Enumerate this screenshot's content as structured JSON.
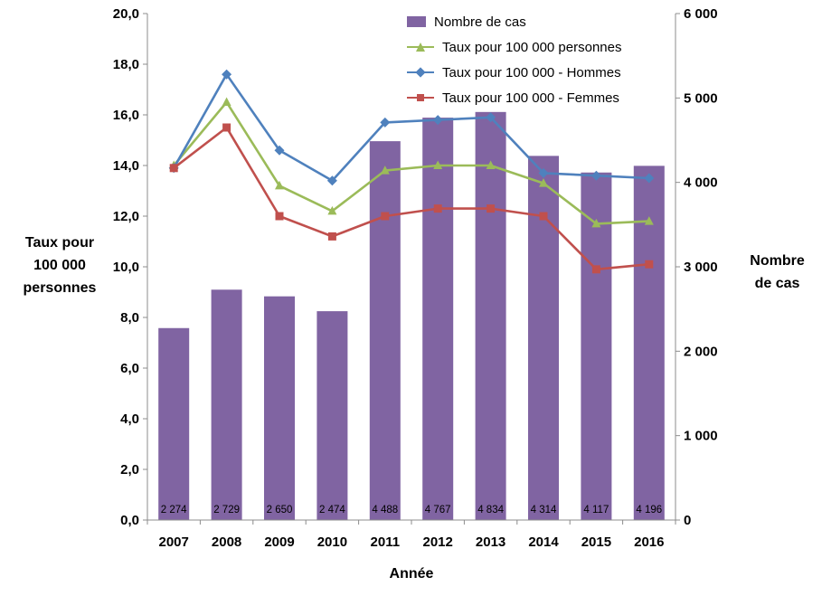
{
  "chart_data": {
    "type": "combo-bar-line",
    "title": "",
    "xlabel": "Année",
    "ylabel_left": "Taux pour 100 000 personnes",
    "ylabel_left_lines": [
      "Taux pour",
      "100 000",
      "personnes"
    ],
    "ylabel_right": "Nombre de cas",
    "ylabel_right_lines": [
      "Nombre",
      "de cas"
    ],
    "legend_position": "top-center",
    "grid": false,
    "categories": [
      "2007",
      "2008",
      "2009",
      "2010",
      "2011",
      "2012",
      "2013",
      "2014",
      "2015",
      "2016"
    ],
    "left_axis": {
      "min": 0,
      "max": 20,
      "step": 2,
      "tick_labels": [
        "0,0",
        "2,0",
        "4,0",
        "6,0",
        "8,0",
        "10,0",
        "12,0",
        "14,0",
        "16,0",
        "18,0",
        "20,0"
      ]
    },
    "right_axis": {
      "min": 0,
      "max": 6000,
      "step": 1000,
      "tick_labels": [
        "0",
        "1 000",
        "2 000",
        "3 000",
        "4 000",
        "5 000",
        "6 000"
      ]
    },
    "bar_series": {
      "name": "Nombre de cas",
      "axis": "right",
      "color": "#8064A2",
      "values": [
        2274,
        2729,
        2650,
        2474,
        4488,
        4767,
        4834,
        4314,
        4117,
        4196
      ],
      "labels": [
        "2 274",
        "2 729",
        "2 650",
        "2 474",
        "4 488",
        "4 767",
        "4 834",
        "4 314",
        "4 117",
        "4 196"
      ]
    },
    "line_series": [
      {
        "name": "Taux pour 100 000 personnes",
        "axis": "left",
        "color": "#9BBB59",
        "marker": "triangle",
        "values": [
          14.0,
          16.5,
          13.2,
          12.2,
          13.8,
          14.0,
          14.0,
          13.3,
          11.7,
          11.8
        ]
      },
      {
        "name": "Taux pour 100 000 - Hommes",
        "axis": "left",
        "color": "#4F81BD",
        "marker": "diamond",
        "values": [
          13.9,
          17.6,
          14.6,
          13.4,
          15.7,
          15.8,
          15.9,
          13.7,
          13.6,
          13.5
        ]
      },
      {
        "name": "Taux pour 100 000 - Femmes",
        "axis": "left",
        "color": "#C0504D",
        "marker": "square",
        "values": [
          13.9,
          15.5,
          12.0,
          11.2,
          12.0,
          12.3,
          12.3,
          12.0,
          9.9,
          10.1
        ]
      }
    ],
    "axis_color": "#8c8c8c"
  }
}
